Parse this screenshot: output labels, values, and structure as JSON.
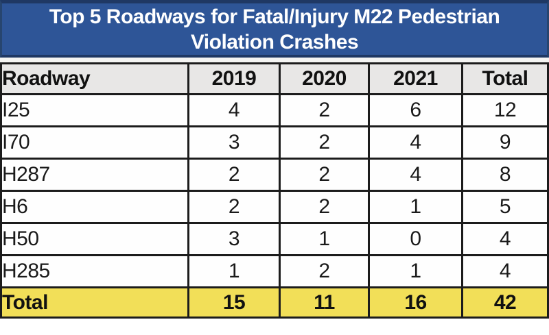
{
  "title": {
    "line1": "Top 5 Roadways for Fatal/Injury M22 Pedestrian",
    "line2": "Violation Crashes",
    "full": "Top 5 Roadways for Fatal/Injury M22 Pedestrian Violation Crashes"
  },
  "table": {
    "columns": [
      "Roadway",
      "2019",
      "2020",
      "2021",
      "Total"
    ],
    "rows": [
      {
        "roadway": "I25",
        "values": [
          "4",
          "2",
          "6",
          "12"
        ]
      },
      {
        "roadway": "I70",
        "values": [
          "3",
          "2",
          "4",
          "9"
        ]
      },
      {
        "roadway": "H287",
        "values": [
          "2",
          "2",
          "4",
          "8"
        ]
      },
      {
        "roadway": "H6",
        "values": [
          "2",
          "2",
          "1",
          "5"
        ]
      },
      {
        "roadway": "H50",
        "values": [
          "3",
          "1",
          "0",
          "4"
        ]
      },
      {
        "roadway": "H285",
        "values": [
          "1",
          "2",
          "1",
          "4"
        ]
      }
    ],
    "total_row": {
      "label": "Total",
      "values": [
        "15",
        "11",
        "16",
        "42"
      ]
    }
  },
  "colors": {
    "title_background": "#2e5597",
    "title_border": "#1f3864",
    "title_text": "#ffffff",
    "header_background": "#e8e7e6",
    "total_row_background": "#f2df58",
    "table_border": "#1c1c1c",
    "data_background": "#fefefe"
  },
  "chart_data": {
    "type": "table",
    "title": "Top 5 Roadways for Fatal/Injury M22 Pedestrian Violation Crashes",
    "categories": [
      "2019",
      "2020",
      "2021",
      "Total"
    ],
    "series": [
      {
        "name": "I25",
        "values": [
          4,
          2,
          6,
          12
        ]
      },
      {
        "name": "I70",
        "values": [
          3,
          2,
          4,
          9
        ]
      },
      {
        "name": "H287",
        "values": [
          2,
          2,
          4,
          8
        ]
      },
      {
        "name": "H6",
        "values": [
          2,
          2,
          1,
          5
        ]
      },
      {
        "name": "H50",
        "values": [
          3,
          1,
          0,
          4
        ]
      },
      {
        "name": "H285",
        "values": [
          1,
          2,
          1,
          4
        ]
      },
      {
        "name": "Total",
        "values": [
          15,
          11,
          16,
          42
        ]
      }
    ]
  }
}
